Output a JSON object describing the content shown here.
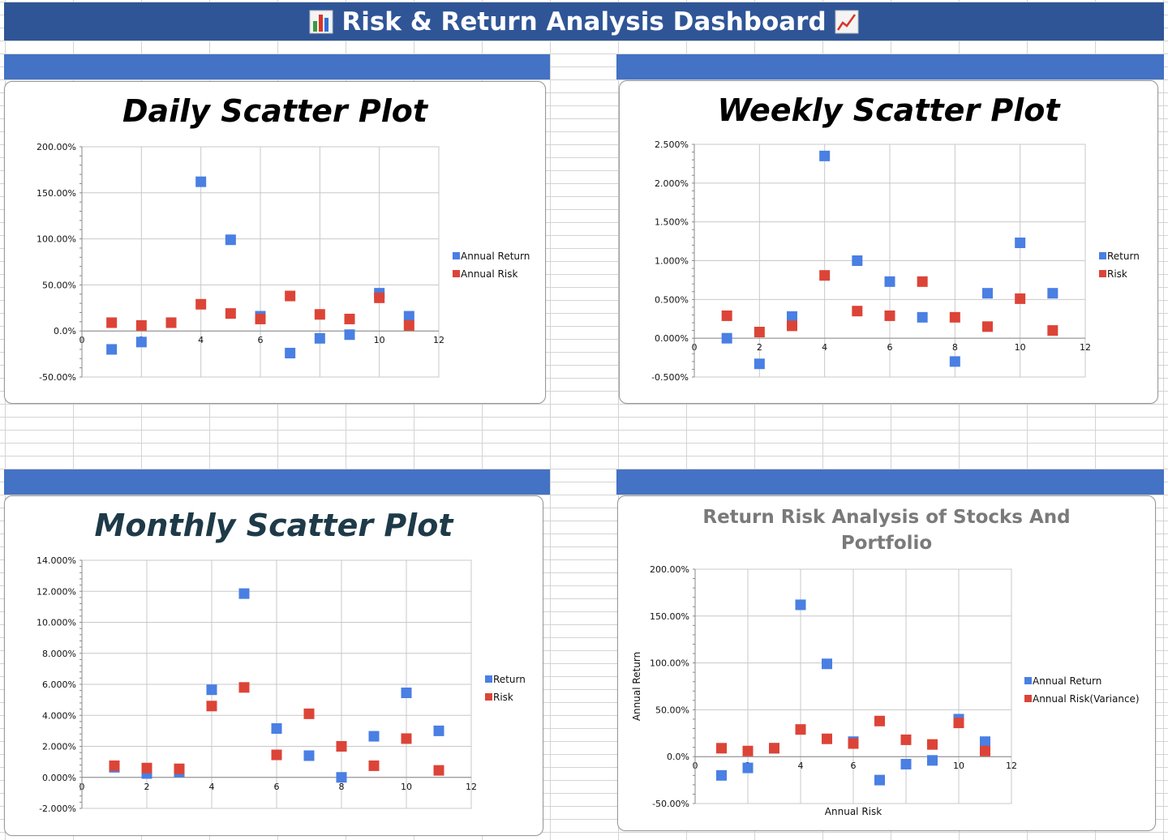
{
  "dashboard": {
    "title": "Risk & Return Analysis Dashboard"
  },
  "colors": {
    "header": "#2f5597",
    "band": "#4472c4",
    "return_series": "#4a7fe3",
    "risk_series": "#dc4437",
    "grid": "#c8c8c8"
  },
  "chart_data": [
    {
      "type": "scatter",
      "title": "Daily Scatter Plot",
      "xlim": [
        0,
        12
      ],
      "xticks": [
        0,
        2,
        4,
        6,
        8,
        10,
        12
      ],
      "ylim": [
        -0.5,
        2.0
      ],
      "yticks": [
        -0.5,
        0,
        0.5,
        1.0,
        1.5,
        2.0
      ],
      "ytick_decimals": 2,
      "grid": true,
      "legend_position": "right",
      "xlabel": "",
      "ylabel": "",
      "series": [
        {
          "name": "Annual Return",
          "x": [
            1,
            2,
            3,
            4,
            5,
            6,
            7,
            8,
            9,
            10,
            11
          ],
          "y": [
            -0.2,
            -0.12,
            0.09,
            1.62,
            0.99,
            0.16,
            -0.24,
            -0.08,
            -0.04,
            0.41,
            0.16
          ]
        },
        {
          "name": "Annual Risk",
          "x": [
            1,
            2,
            3,
            4,
            5,
            6,
            7,
            8,
            9,
            10,
            11
          ],
          "y": [
            0.09,
            0.06,
            0.09,
            0.29,
            0.19,
            0.13,
            0.38,
            0.18,
            0.13,
            0.36,
            0.06
          ]
        }
      ]
    },
    {
      "type": "scatter",
      "title": "Weekly Scatter Plot",
      "xlim": [
        0,
        12
      ],
      "xticks": [
        0,
        2,
        4,
        6,
        8,
        10,
        12
      ],
      "ylim": [
        -0.005,
        0.025
      ],
      "yticks": [
        -0.005,
        0,
        0.005,
        0.01,
        0.015,
        0.02,
        0.025
      ],
      "ytick_decimals": 3,
      "grid": true,
      "legend_position": "right",
      "xlabel": "",
      "ylabel": "",
      "series": [
        {
          "name": "Return",
          "x": [
            1,
            2,
            3,
            4,
            5,
            6,
            7,
            8,
            9,
            10,
            11
          ],
          "y": [
            0.0,
            -0.0033,
            0.0028,
            0.0235,
            0.01,
            0.0073,
            0.0027,
            -0.003,
            0.0058,
            0.0123,
            0.0058
          ]
        },
        {
          "name": "Risk",
          "x": [
            1,
            2,
            3,
            4,
            5,
            6,
            7,
            8,
            9,
            10,
            11
          ],
          "y": [
            0.0029,
            0.0008,
            0.0016,
            0.0081,
            0.0035,
            0.0029,
            0.0073,
            0.0027,
            0.0015,
            0.0051,
            0.001
          ]
        }
      ]
    },
    {
      "type": "scatter",
      "title": "Monthly Scatter Plot",
      "xlim": [
        0,
        12
      ],
      "xticks": [
        0,
        2,
        4,
        6,
        8,
        10,
        12
      ],
      "ylim": [
        -0.02,
        0.14
      ],
      "yticks": [
        -0.02,
        0,
        0.02,
        0.04,
        0.06,
        0.08,
        0.1,
        0.12,
        0.14
      ],
      "ytick_decimals": 3,
      "grid": true,
      "legend_position": "right",
      "xlabel": "",
      "ylabel": "",
      "series": [
        {
          "name": "Return",
          "x": [
            1,
            2,
            3,
            4,
            5,
            6,
            7,
            8,
            9,
            10,
            11
          ],
          "y": [
            0.0065,
            0.0025,
            0.0035,
            0.0565,
            0.1185,
            0.0315,
            0.014,
            0.0,
            0.0265,
            0.0545,
            0.03
          ]
        },
        {
          "name": "Risk",
          "x": [
            1,
            2,
            3,
            4,
            5,
            6,
            7,
            8,
            9,
            10,
            11
          ],
          "y": [
            0.0075,
            0.006,
            0.0055,
            0.046,
            0.058,
            0.0145,
            0.041,
            0.02,
            0.0075,
            0.025,
            0.0045
          ]
        }
      ]
    },
    {
      "type": "scatter",
      "title": "Return Risk Analysis of Stocks And Portfolio",
      "xlim": [
        0,
        12
      ],
      "xticks": [
        0,
        2,
        4,
        6,
        8,
        10,
        12
      ],
      "ylim": [
        -0.5,
        2.0
      ],
      "yticks": [
        -0.5,
        0,
        0.5,
        1.0,
        1.5,
        2.0
      ],
      "ytick_decimals": 2,
      "grid": true,
      "legend_position": "right",
      "xlabel": "Annual Risk",
      "ylabel": "Annual Return",
      "series": [
        {
          "name": "Annual Return",
          "x": [
            1,
            2,
            3,
            4,
            5,
            6,
            7,
            8,
            9,
            10,
            11
          ],
          "y": [
            -0.2,
            -0.12,
            0.09,
            1.62,
            0.99,
            0.16,
            -0.25,
            -0.08,
            -0.04,
            0.4,
            0.16
          ]
        },
        {
          "name": "Annual Risk(Variance)",
          "x": [
            1,
            2,
            3,
            4,
            5,
            6,
            7,
            8,
            9,
            10,
            11
          ],
          "y": [
            0.09,
            0.06,
            0.09,
            0.29,
            0.19,
            0.14,
            0.38,
            0.18,
            0.13,
            0.36,
            0.06
          ]
        }
      ]
    }
  ]
}
